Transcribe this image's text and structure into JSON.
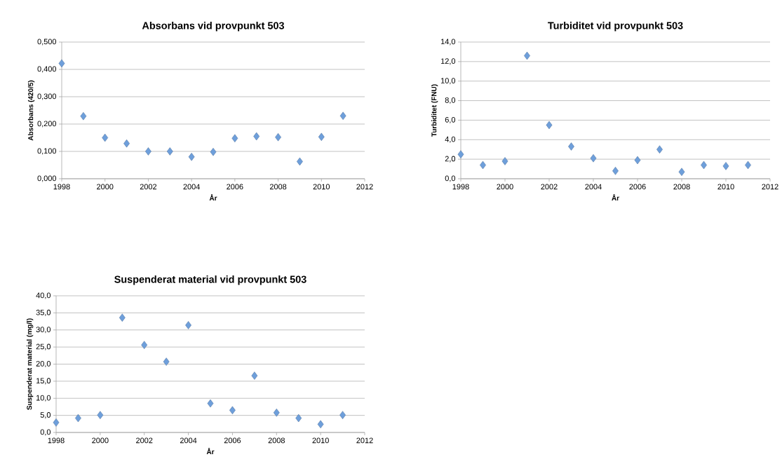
{
  "chart_data": [
    {
      "type": "scatter",
      "title": "Absorbans vid provpunkt 503",
      "xlabel": "År",
      "ylabel": "Absorbans (420/5)",
      "color": "#6e9fdb",
      "marker": "diamond",
      "grid": "y",
      "x": [
        1998,
        1999,
        2000,
        2001,
        2002,
        2003,
        2004,
        2005,
        2006,
        2007,
        2008,
        2009,
        2010,
        2011
      ],
      "values": [
        0.422,
        0.229,
        0.15,
        0.129,
        0.1,
        0.1,
        0.08,
        0.098,
        0.148,
        0.155,
        0.152,
        0.063,
        0.153,
        0.23
      ],
      "xlim": [
        1998,
        2012
      ],
      "xticks": [
        1998,
        2000,
        2002,
        2004,
        2006,
        2008,
        2010,
        2012
      ],
      "ylim": [
        0,
        0.5
      ],
      "yticks": [
        {
          "value": 0,
          "label": "0,000"
        },
        {
          "value": 0.1,
          "label": "0,100"
        },
        {
          "value": 0.2,
          "label": "0,200"
        },
        {
          "value": 0.3,
          "label": "0,300"
        },
        {
          "value": 0.4,
          "label": "0,400"
        },
        {
          "value": 0.5,
          "label": "0,500"
        }
      ]
    },
    {
      "type": "scatter",
      "title": "Turbiditet vid provpunkt 503",
      "xlabel": "År",
      "ylabel": "Turbiditet (FNU)",
      "color": "#6e9fdb",
      "marker": "diamond",
      "grid": "y",
      "x": [
        1998,
        1999,
        2000,
        2001,
        2002,
        2003,
        2004,
        2005,
        2006,
        2007,
        2008,
        2009,
        2010,
        2011
      ],
      "values": [
        2.5,
        1.4,
        1.8,
        12.6,
        5.5,
        3.3,
        2.1,
        0.8,
        1.9,
        3.0,
        0.7,
        1.4,
        1.3,
        1.4
      ],
      "xlim": [
        1998,
        2012
      ],
      "xticks": [
        1998,
        2000,
        2002,
        2004,
        2006,
        2008,
        2010,
        2012
      ],
      "ylim": [
        0,
        14
      ],
      "yticks": [
        {
          "value": 0,
          "label": "0,0"
        },
        {
          "value": 2,
          "label": "2,0"
        },
        {
          "value": 4,
          "label": "4,0"
        },
        {
          "value": 6,
          "label": "6,0"
        },
        {
          "value": 8,
          "label": "8,0"
        },
        {
          "value": 10,
          "label": "10,0"
        },
        {
          "value": 12,
          "label": "12,0"
        },
        {
          "value": 14,
          "label": "14,0"
        }
      ]
    },
    {
      "type": "scatter",
      "title": "Suspenderat material vid provpunkt 503",
      "xlabel": "År",
      "ylabel": "Suspenderat material (mg/l)",
      "color": "#6e9fdb",
      "marker": "diamond",
      "grid": "y",
      "x": [
        1998,
        1999,
        2000,
        2001,
        2002,
        2003,
        2004,
        2005,
        2006,
        2007,
        2008,
        2009,
        2010,
        2011
      ],
      "values": [
        2.9,
        4.2,
        5.1,
        33.6,
        25.6,
        20.7,
        31.4,
        8.5,
        6.5,
        16.6,
        5.8,
        4.2,
        2.4,
        5.1
      ],
      "xlim": [
        1998,
        2012
      ],
      "xticks": [
        1998,
        2000,
        2002,
        2004,
        2006,
        2008,
        2010,
        2012
      ],
      "ylim": [
        0,
        40
      ],
      "yticks": [
        {
          "value": 0,
          "label": "0,0"
        },
        {
          "value": 5,
          "label": "5,0"
        },
        {
          "value": 10,
          "label": "10,0"
        },
        {
          "value": 15,
          "label": "15,0"
        },
        {
          "value": 20,
          "label": "20,0"
        },
        {
          "value": 25,
          "label": "25,0"
        },
        {
          "value": 30,
          "label": "30,0"
        },
        {
          "value": 35,
          "label": "35,0"
        },
        {
          "value": 40,
          "label": "40,0"
        }
      ]
    }
  ]
}
